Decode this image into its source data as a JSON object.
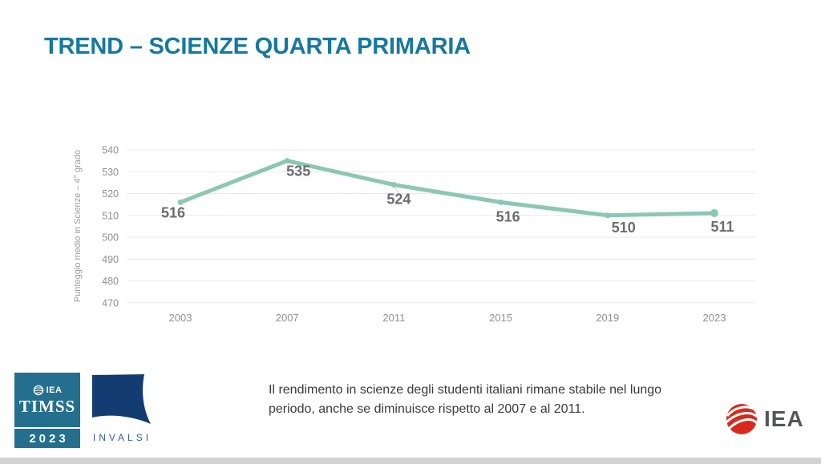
{
  "slide": {
    "title": "TREND – SCIENZE QUARTA PRIMARIA",
    "caption": "Il rendimento in scienze degli studenti italiani rimane stabile nel lungo periodo, anche se diminuisce rispetto al 2007 e al 2011."
  },
  "chart_data": {
    "type": "line",
    "categories": [
      "2003",
      "2007",
      "2011",
      "2015",
      "2019",
      "2023"
    ],
    "series": [
      {
        "name": "Punteggio medio in Scienze",
        "values": [
          516,
          535,
          524,
          516,
          510,
          511
        ]
      }
    ],
    "title": "",
    "xlabel": "",
    "ylabel": "Punteggio medio in Scienze – 4° grado",
    "ylim": [
      470,
      540
    ],
    "ytick_step": 10,
    "grid": true,
    "legend": "none",
    "line_color": "#8CC7B2",
    "marker_color": "#8CC7B2",
    "label_color": "#6B6C6F",
    "tick_color": "#8F9093",
    "grid_color": "#E9E9E9"
  },
  "logos": {
    "timss": {
      "iea_label": "IEA",
      "name": "TIMSS",
      "year": "2023",
      "box_color": "#246F8E"
    },
    "invalsi": {
      "name": "INVALSI",
      "sail_color": "#123C72",
      "text_color": "#2E5CA6"
    },
    "iea_right": {
      "name": "IEA",
      "globe_color": "#D9291C"
    }
  }
}
